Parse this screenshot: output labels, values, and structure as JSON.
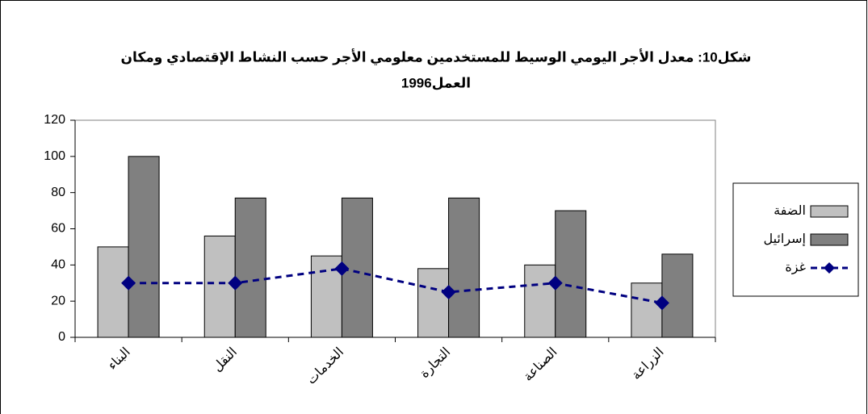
{
  "chart_data": {
    "type": "bar",
    "title": [
      "شكل10: معدل الأجر اليومي الوسيط للمستخدمين معلومي الأجر حسب النشاط الإقتصادي ومكان",
      "العمل1996"
    ],
    "categories": [
      "البناء",
      "النقل",
      "الخدمات",
      "التجارة",
      "الصناعة",
      "الزراعة"
    ],
    "series": [
      {
        "name": "الضفة",
        "color": "#c0c0c0",
        "type": "bar",
        "values": [
          50,
          56,
          45,
          38,
          40,
          30
        ]
      },
      {
        "name": "إسرائيل",
        "color": "#808080",
        "type": "bar",
        "values": [
          100,
          77,
          77,
          77,
          70,
          46
        ]
      },
      {
        "name": "غزة",
        "color": "#000080",
        "type": "line",
        "values": [
          30,
          30,
          38,
          25,
          30,
          19
        ]
      }
    ],
    "ylim": [
      0,
      120
    ],
    "yticks": [
      0,
      20,
      40,
      60,
      80,
      100,
      120
    ],
    "legend": "right"
  }
}
